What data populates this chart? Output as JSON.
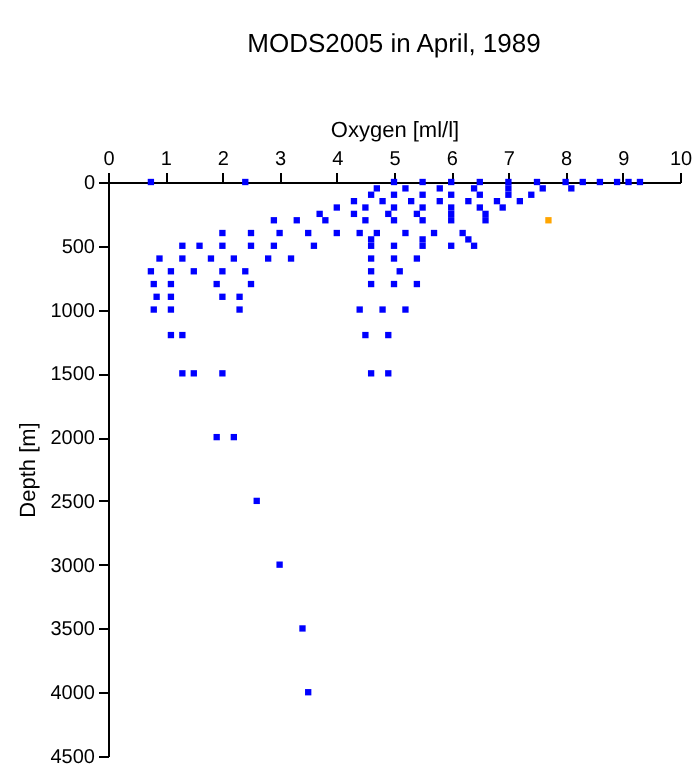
{
  "chart_data": {
    "type": "scatter",
    "title": "MODS2005 in April, 1989",
    "xlabel": "Oxygen [ml/l]",
    "ylabel": "Depth [m]",
    "xlim": [
      0,
      10
    ],
    "xticks": [
      0,
      1,
      2,
      3,
      4,
      5,
      6,
      7,
      8,
      9,
      10
    ],
    "ylim": [
      4500,
      0
    ],
    "yticks": [
      0,
      500,
      1000,
      1500,
      2000,
      2500,
      3000,
      3500,
      4000,
      4500
    ],
    "grid": false,
    "marker": "square",
    "series": [
      {
        "color": "#0000ff",
        "x": [
          0.75,
          2.4,
          5,
          5.5,
          6,
          6.5,
          7,
          7.5,
          8,
          8.3,
          8.6,
          8.9,
          9.1,
          9.3,
          4.7,
          5.2,
          5.8,
          6.4,
          7.0,
          7.6,
          8.1,
          4.6,
          5.0,
          5.5,
          6.0,
          6.5,
          7.0,
          7.4,
          4.3,
          4.8,
          5.3,
          5.8,
          6.3,
          6.8,
          7.2,
          4.0,
          4.5,
          5.0,
          5.5,
          6.0,
          6.5,
          6.9,
          3.7,
          4.3,
          4.9,
          5.4,
          6.0,
          6.6,
          2.9,
          3.3,
          3.8,
          4.5,
          5.0,
          5.5,
          6.0,
          6.6,
          2.0,
          2.5,
          3.0,
          3.5,
          4.0,
          4.4,
          4.7,
          5.2,
          5.7,
          6.2,
          4.6,
          5.5,
          6.3,
          1.3,
          1.6,
          2.0,
          2.5,
          2.9,
          3.6,
          4.6,
          5.0,
          5.5,
          6.0,
          6.4,
          0.9,
          1.3,
          1.8,
          2.2,
          2.8,
          3.2,
          4.6,
          5.0,
          5.4,
          0.75,
          1.1,
          1.5,
          2.0,
          2.4,
          4.6,
          5.1,
          0.8,
          1.1,
          1.9,
          2.5,
          4.6,
          5.0,
          5.4,
          0.85,
          1.1,
          2.0,
          2.3,
          0.8,
          1.1,
          2.3,
          4.4,
          4.8,
          5.2,
          1.1,
          1.3,
          4.5,
          4.9,
          1.3,
          1.5,
          2.0,
          4.6,
          4.9,
          1.9,
          2.2,
          2.6,
          3.0,
          3.4,
          3.5
        ],
        "values": [
          0,
          0,
          0,
          0,
          0,
          0,
          0,
          0,
          0,
          0,
          0,
          0,
          0,
          0,
          50,
          50,
          50,
          50,
          50,
          50,
          50,
          100,
          100,
          100,
          100,
          100,
          100,
          100,
          150,
          150,
          150,
          150,
          150,
          150,
          150,
          200,
          200,
          200,
          200,
          200,
          200,
          200,
          250,
          250,
          250,
          250,
          250,
          250,
          300,
          300,
          300,
          300,
          300,
          300,
          300,
          300,
          400,
          400,
          400,
          400,
          400,
          400,
          400,
          400,
          400,
          400,
          450,
          450,
          450,
          500,
          500,
          500,
          500,
          500,
          500,
          500,
          500,
          500,
          500,
          500,
          600,
          600,
          600,
          600,
          600,
          600,
          600,
          600,
          600,
          700,
          700,
          700,
          700,
          700,
          700,
          700,
          800,
          800,
          800,
          800,
          800,
          800,
          800,
          900,
          900,
          900,
          900,
          1000,
          1000,
          1000,
          1000,
          1000,
          1000,
          1200,
          1200,
          1200,
          1200,
          1500,
          1500,
          1500,
          1500,
          1500,
          2000,
          2000,
          2500,
          3000,
          3500,
          4000
        ]
      },
      {
        "color": "#ffa500",
        "x": [
          7.7
        ],
        "values": [
          300
        ]
      }
    ]
  }
}
